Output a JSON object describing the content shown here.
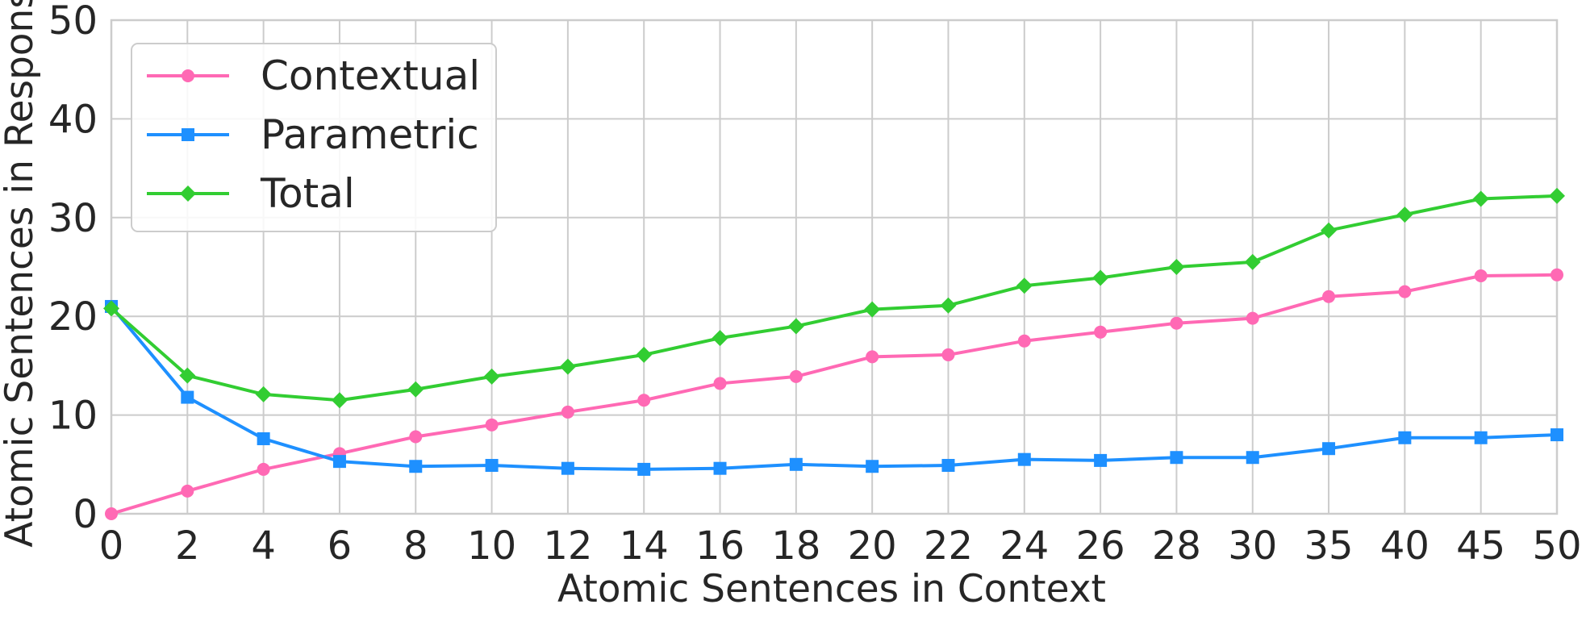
{
  "chart_data": {
    "type": "line",
    "title": "",
    "xlabel": "Atomic Sentences in Context",
    "ylabel": "Atomic Sentences in Response",
    "categories": [
      "0",
      "2",
      "4",
      "6",
      "8",
      "10",
      "12",
      "14",
      "16",
      "18",
      "20",
      "22",
      "24",
      "26",
      "28",
      "30",
      "35",
      "40",
      "45",
      "50"
    ],
    "ylim": [
      0,
      50
    ],
    "yticks": [
      "0",
      "10",
      "20",
      "30",
      "40",
      "50"
    ],
    "grid": true,
    "legend_position": "top-left",
    "series": [
      {
        "name": "Contextual",
        "color": "#ff69b4",
        "marker": "circle",
        "values": [
          0.0,
          2.3,
          4.5,
          6.1,
          7.8,
          9.0,
          10.3,
          11.5,
          13.2,
          13.9,
          15.9,
          16.1,
          17.5,
          18.4,
          19.3,
          19.8,
          22.0,
          22.5,
          24.1,
          24.2
        ]
      },
      {
        "name": "Parametric",
        "color": "#1e90ff",
        "marker": "square",
        "values": [
          21.0,
          11.8,
          7.6,
          5.3,
          4.8,
          4.9,
          4.6,
          4.5,
          4.6,
          5.0,
          4.8,
          4.9,
          5.5,
          5.4,
          5.7,
          5.7,
          6.6,
          7.7,
          7.7,
          8.0
        ]
      },
      {
        "name": "Total",
        "color": "#32cd32",
        "marker": "diamond",
        "values": [
          20.8,
          14.0,
          12.1,
          11.5,
          12.6,
          13.9,
          14.9,
          16.1,
          17.8,
          19.0,
          20.7,
          21.1,
          23.1,
          23.9,
          25.0,
          25.5,
          28.7,
          30.3,
          31.9,
          32.2
        ]
      }
    ]
  }
}
